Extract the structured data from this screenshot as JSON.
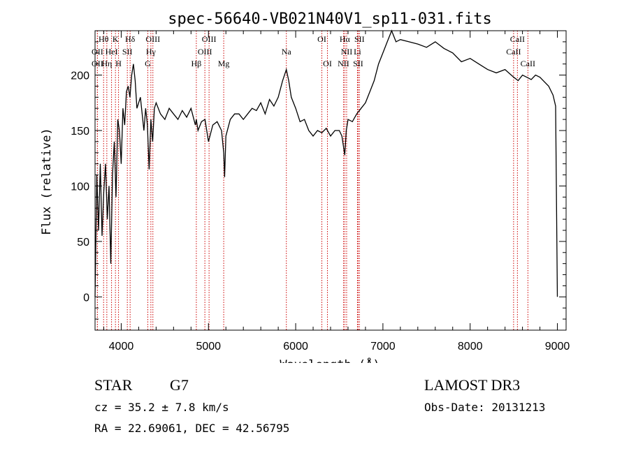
{
  "chart_data": {
    "type": "line",
    "title": "spec-56640-VB021N40V1_sp11-031.fits",
    "xlabel": "Wavelength (Å)",
    "ylabel": "Flux (relative)",
    "xlim": [
      3700,
      9100
    ],
    "ylim": [
      -30,
      240
    ],
    "x_ticks": [
      4000,
      5000,
      6000,
      7000,
      8000,
      9000
    ],
    "y_ticks": [
      0,
      50,
      100,
      150,
      200
    ],
    "grid": false,
    "series": [
      {
        "x": [
          3700,
          3720,
          3740,
          3760,
          3780,
          3800,
          3820,
          3840,
          3860,
          3880,
          3900,
          3920,
          3940,
          3960,
          3980,
          4000,
          4020,
          4040,
          4060,
          4080,
          4100,
          4120,
          4140,
          4160,
          4180,
          4200,
          4220,
          4240,
          4260,
          4280,
          4300,
          4320,
          4340,
          4360,
          4380,
          4400,
          4450,
          4500,
          4550,
          4600,
          4650,
          4700,
          4750,
          4800,
          4850,
          4861,
          4880,
          4920,
          4960,
          5000,
          5050,
          5100,
          5150,
          5175,
          5185,
          5200,
          5250,
          5300,
          5350,
          5400,
          5450,
          5500,
          5550,
          5600,
          5650,
          5700,
          5750,
          5800,
          5850,
          5893,
          5920,
          5950,
          6000,
          6050,
          6100,
          6150,
          6200,
          6250,
          6300,
          6350,
          6400,
          6450,
          6500,
          6530,
          6563,
          6580,
          6600,
          6650,
          6700,
          6750,
          6800,
          6850,
          6900,
          6950,
          7000,
          7050,
          7100,
          7150,
          7200,
          7300,
          7400,
          7500,
          7600,
          7700,
          7800,
          7900,
          8000,
          8100,
          8200,
          8300,
          8400,
          8500,
          8550,
          8600,
          8650,
          8700,
          8750,
          8800,
          8850,
          8900,
          8950,
          8980,
          9000
        ],
        "y": [
          0,
          110,
          60,
          120,
          55,
          95,
          120,
          70,
          100,
          30,
          110,
          140,
          90,
          160,
          150,
          120,
          170,
          155,
          185,
          190,
          180,
          200,
          210,
          195,
          170,
          175,
          180,
          165,
          150,
          170,
          155,
          115,
          160,
          140,
          170,
          175,
          165,
          160,
          170,
          165,
          160,
          168,
          162,
          170,
          155,
          160,
          150,
          158,
          160,
          140,
          155,
          158,
          150,
          130,
          108,
          145,
          160,
          165,
          165,
          160,
          165,
          170,
          168,
          175,
          165,
          178,
          172,
          180,
          195,
          205,
          195,
          180,
          170,
          158,
          160,
          150,
          145,
          150,
          148,
          152,
          145,
          150,
          150,
          145,
          128,
          150,
          160,
          158,
          165,
          170,
          175,
          185,
          195,
          210,
          220,
          230,
          240,
          230,
          232,
          230,
          228,
          225,
          230,
          224,
          220,
          212,
          215,
          210,
          205,
          202,
          205,
          198,
          195,
          200,
          198,
          196,
          200,
          198,
          194,
          190,
          182,
          172,
          0
        ]
      }
    ],
    "spectral_lines": [
      {
        "label": "Hθ",
        "x": 3798,
        "row": 0
      },
      {
        "label": "K",
        "x": 3934,
        "row": 0
      },
      {
        "label": "Hδ",
        "x": 4102,
        "row": 0
      },
      {
        "label": "OIII",
        "x": 4363,
        "row": 0
      },
      {
        "label": "OIII",
        "x": 5007,
        "row": 0
      },
      {
        "label": "OI",
        "x": 6300,
        "row": 0
      },
      {
        "label": "Hα",
        "x": 6563,
        "row": 0
      },
      {
        "label": "SII",
        "x": 6731,
        "row": 0
      },
      {
        "label": "CaII",
        "x": 8542,
        "row": 0
      },
      {
        "label": "OII",
        "x": 3727,
        "row": 1
      },
      {
        "label": "HeI",
        "x": 3889,
        "row": 1
      },
      {
        "label": "SII",
        "x": 4070,
        "row": 1
      },
      {
        "label": "Hγ",
        "x": 4340,
        "row": 1
      },
      {
        "label": "OIII",
        "x": 4959,
        "row": 1
      },
      {
        "label": "Na",
        "x": 5893,
        "row": 1
      },
      {
        "label": "NII",
        "x": 6584,
        "row": 1
      },
      {
        "label": "Li",
        "x": 6708,
        "row": 1
      },
      {
        "label": "CaII",
        "x": 8498,
        "row": 1
      },
      {
        "label": "OII",
        "x": 3727,
        "row": 2
      },
      {
        "label": "Hη",
        "x": 3835,
        "row": 2
      },
      {
        "label": "H",
        "x": 3969,
        "row": 2
      },
      {
        "label": "G",
        "x": 4305,
        "row": 2
      },
      {
        "label": "Hβ",
        "x": 4861,
        "row": 2
      },
      {
        "label": "Mg",
        "x": 5175,
        "row": 2
      },
      {
        "label": "OI",
        "x": 6364,
        "row": 2
      },
      {
        "label": "NII",
        "x": 6548,
        "row": 2
      },
      {
        "label": "SII",
        "x": 6716,
        "row": 2
      },
      {
        "label": "CaII",
        "x": 8662,
        "row": 2
      }
    ],
    "line_marker_color": "#cc0000",
    "spectrum_color": "#000000"
  },
  "info": {
    "object_class": "STAR",
    "subclass": "G7",
    "cz": "cz = 35.2 ± 7.8 km/s",
    "coords": "RA =  22.69061, DEC =  42.56795",
    "survey": "LAMOST DR3",
    "obs_date": "Obs-Date: 20131213"
  }
}
